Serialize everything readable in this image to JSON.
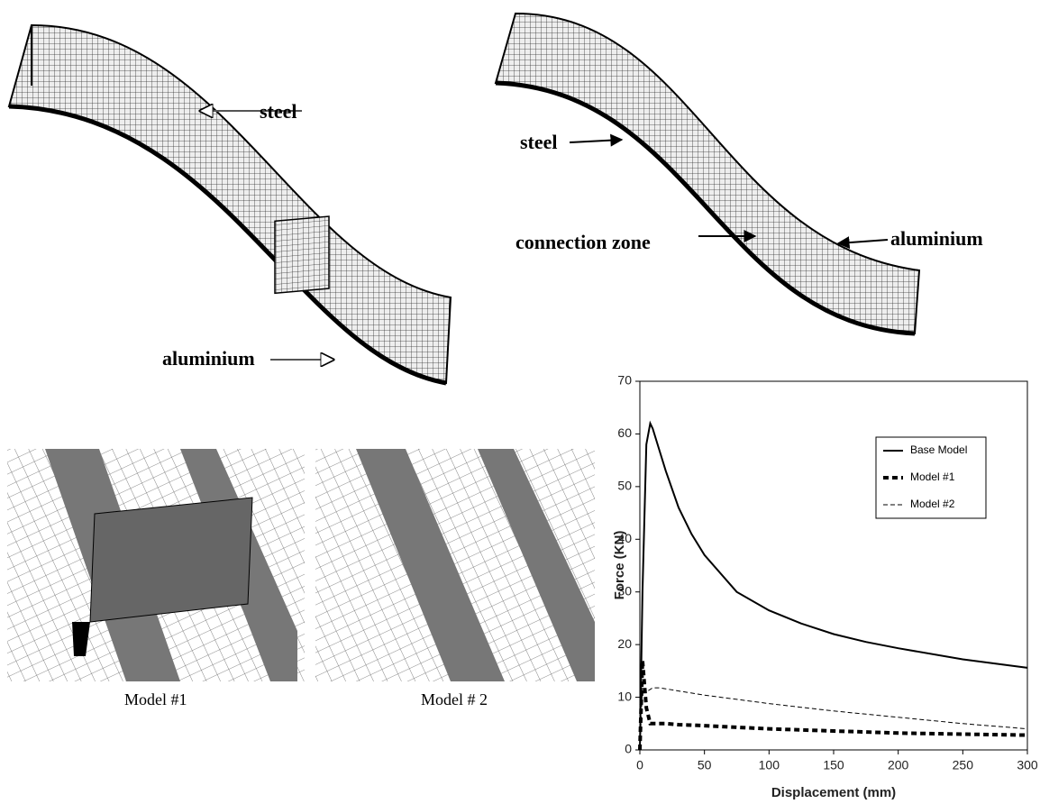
{
  "labels": {
    "tl_steel": "steel",
    "tl_aluminium": "aluminium",
    "tr_steel": "steel",
    "tr_connection": "connection zone",
    "tr_aluminium": "aluminium"
  },
  "captions": [
    "Model #1",
    "Model # 2"
  ],
  "chart_data": {
    "type": "line",
    "xlabel": "Displacement (mm)",
    "ylabel": "Force (KN)",
    "x": [
      0,
      2,
      5,
      8,
      10,
      15,
      20,
      30,
      40,
      50,
      75,
      100,
      125,
      150,
      175,
      200,
      250,
      300
    ],
    "series": [
      {
        "name": "Base Model",
        "color": "#000000",
        "values": [
          0,
          30,
          58,
          62,
          61,
          57,
          53,
          46,
          41,
          37,
          30,
          26.5,
          24,
          22,
          20.5,
          19.3,
          17.2,
          15.6
        ]
      },
      {
        "name": "Model #1",
        "color": "#000000",
        "values": [
          0,
          17,
          8,
          5,
          5,
          5,
          5,
          4.8,
          4.7,
          4.6,
          4.3,
          4,
          3.8,
          3.6,
          3.4,
          3.2,
          3,
          2.8
        ]
      },
      {
        "name": "Model #2",
        "color": "#000000",
        "values": [
          0,
          12,
          11,
          11.5,
          11.8,
          11.8,
          11.6,
          11.2,
          10.8,
          10.4,
          9.6,
          8.8,
          8.1,
          7.4,
          6.8,
          6.2,
          5,
          4
        ]
      }
    ],
    "xlim": [
      0,
      300
    ],
    "ylim": [
      0,
      70
    ],
    "xticks": [
      0,
      50,
      100,
      150,
      200,
      250,
      300
    ],
    "yticks": [
      0,
      10,
      20,
      30,
      40,
      50,
      60,
      70
    ],
    "grid": false,
    "legend": "upper right"
  }
}
